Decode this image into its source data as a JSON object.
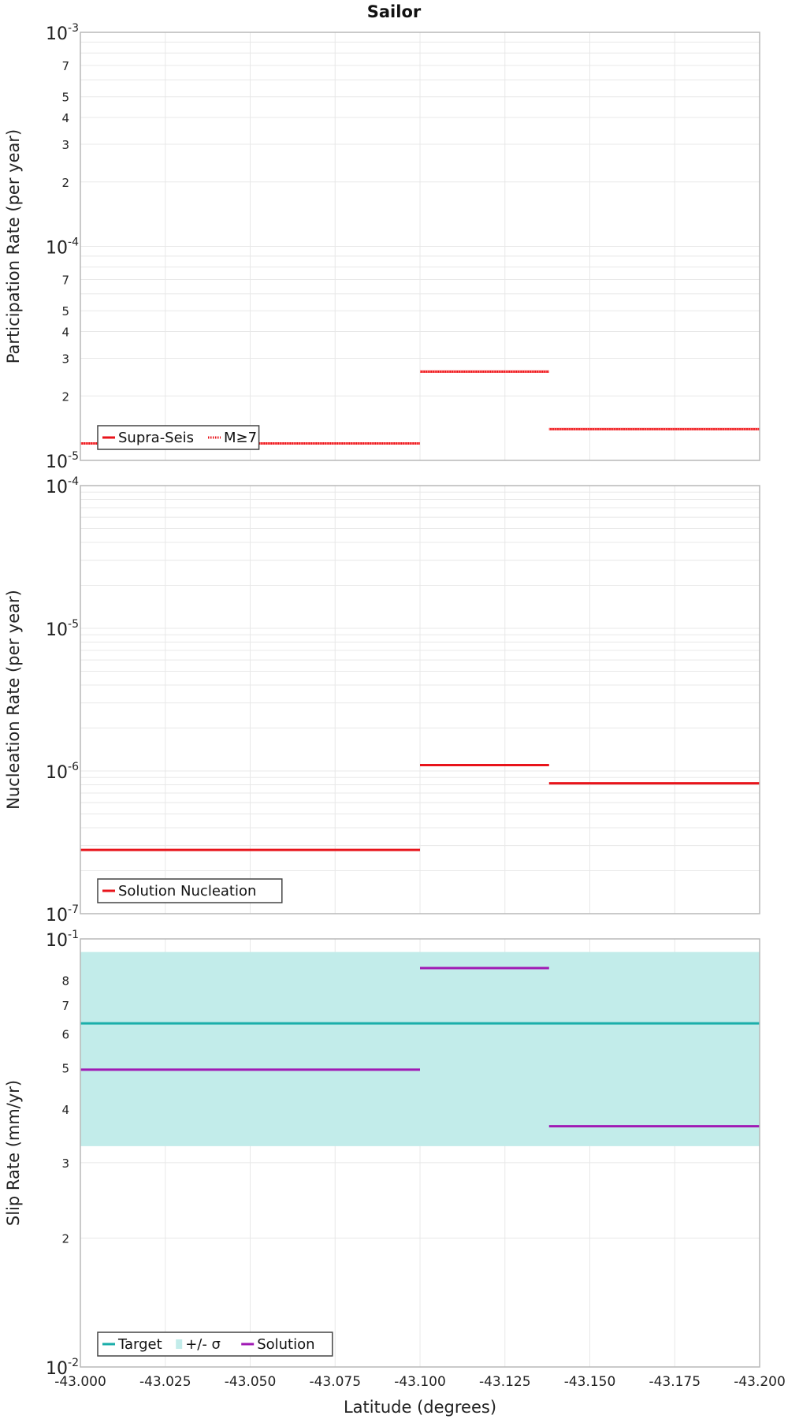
{
  "title": "Sailor",
  "xlabel": "Latitude (degrees)",
  "x_ticks": [
    "-43.000",
    "-43.025",
    "-43.050",
    "-43.075",
    "-43.100",
    "-43.125",
    "-43.150",
    "-43.175",
    "-43.200"
  ],
  "colors": {
    "solution_red": "#e8141b",
    "target": "#1aaeaa",
    "sigma": "#c2ecea",
    "slip_solution": "#a01ab4",
    "grid": "#e8e8e8",
    "frame": "#b8b8b8"
  },
  "chart_data": [
    {
      "type": "line",
      "ylabel": "Participation Rate (per year)",
      "yscale": "log",
      "ylim": [
        1e-05,
        0.001
      ],
      "xlim": [
        -43.0,
        -43.2
      ],
      "series": [
        {
          "name": "Supra-Seis",
          "style": "solid",
          "segments": [
            {
              "x": [
                -43.0,
                -43.1
              ],
              "y": 1.2e-05
            },
            {
              "x": [
                -43.1,
                -43.138
              ],
              "y": 2.6e-05
            },
            {
              "x": [
                -43.138,
                -43.2
              ],
              "y": 1.4e-05
            }
          ]
        },
        {
          "name": "M≥7",
          "style": "dotted",
          "segments": [
            {
              "x": [
                -43.0,
                -43.1
              ],
              "y": 1.2e-05
            },
            {
              "x": [
                -43.1,
                -43.138
              ],
              "y": 2.6e-05
            },
            {
              "x": [
                -43.138,
                -43.2
              ],
              "y": 1.4e-05
            }
          ]
        }
      ],
      "legend": [
        "Supra-Seis",
        "M≥7"
      ],
      "legend_position": "bottom-left"
    },
    {
      "type": "line",
      "ylabel": "Nucleation Rate (per year)",
      "yscale": "log",
      "ylim": [
        1e-07,
        0.0001
      ],
      "xlim": [
        -43.0,
        -43.2
      ],
      "series": [
        {
          "name": "Solution Nucleation",
          "style": "solid",
          "segments": [
            {
              "x": [
                -43.0,
                -43.1
              ],
              "y": 2.8e-07
            },
            {
              "x": [
                -43.1,
                -43.138
              ],
              "y": 1.1e-06
            },
            {
              "x": [
                -43.138,
                -43.2
              ],
              "y": 8.2e-07
            }
          ]
        }
      ],
      "legend": [
        "Solution Nucleation"
      ],
      "legend_position": "bottom-left"
    },
    {
      "type": "line",
      "ylabel": "Slip Rate (mm/yr)",
      "yscale": "log",
      "ylim": [
        0.01,
        0.1
      ],
      "xlim": [
        -43.0,
        -43.2
      ],
      "target": 0.0635,
      "sigma_band": [
        0.0328,
        0.0932
      ],
      "series": [
        {
          "name": "Target",
          "style": "solid",
          "segments": [
            {
              "x": [
                -43.0,
                -43.2
              ],
              "y": 0.0635
            }
          ]
        },
        {
          "name": "+/- σ",
          "style": "band"
        },
        {
          "name": "Solution",
          "style": "solid",
          "segments": [
            {
              "x": [
                -43.0,
                -43.1
              ],
              "y": 0.0495
            },
            {
              "x": [
                -43.1,
                -43.138
              ],
              "y": 0.0855
            },
            {
              "x": [
                -43.138,
                -43.2
              ],
              "y": 0.0365
            }
          ]
        }
      ],
      "legend": [
        "Target",
        "+/- σ",
        "Solution"
      ],
      "legend_position": "bottom-left"
    }
  ]
}
